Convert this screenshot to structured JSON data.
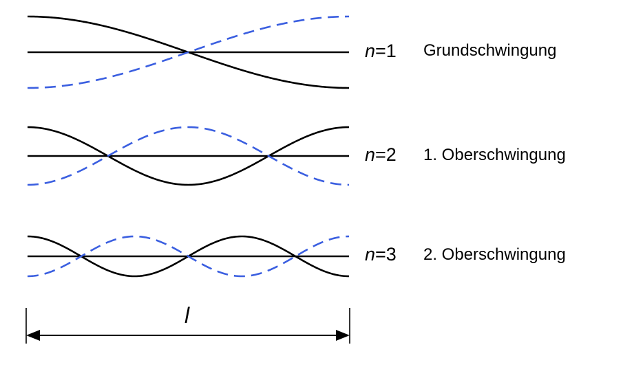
{
  "modes": [
    {
      "n": 1,
      "label_var": "n",
      "label_eq": "=1",
      "name": "Grundschwingung"
    },
    {
      "n": 2,
      "label_var": "n",
      "label_eq": "=2",
      "name": "1. Oberschwingung"
    },
    {
      "n": 3,
      "label_var": "n",
      "label_eq": "=3",
      "name": "2. Oberschwingung"
    }
  ],
  "length_label": "l",
  "colors": {
    "solid_wave": "#000000",
    "dashed_wave": "#3B5FE0",
    "axis": "#000000"
  }
}
